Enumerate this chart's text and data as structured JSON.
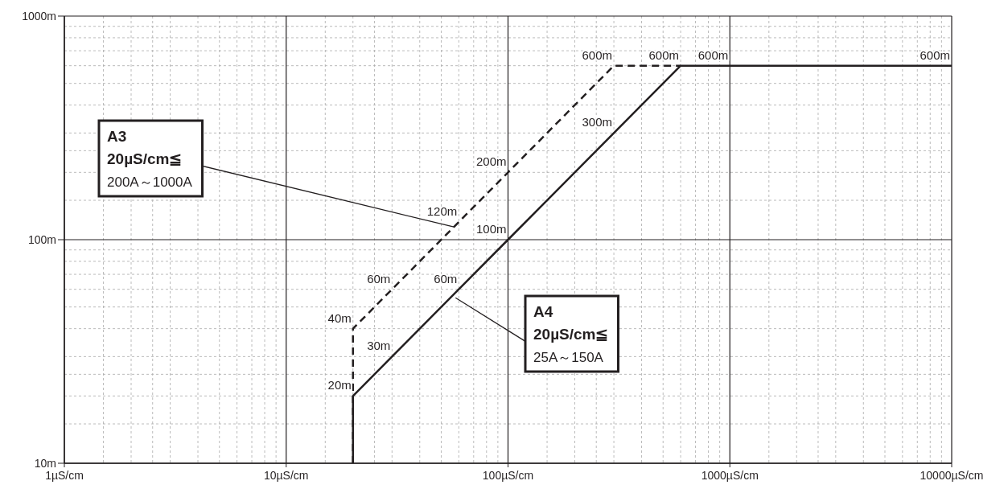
{
  "chart_data": {
    "type": "line",
    "log": "xy",
    "grid": true,
    "xlim": [
      1,
      10000
    ],
    "ylim": [
      10,
      1000
    ],
    "xticks": [
      {
        "value": 1,
        "label": "1µS/cm"
      },
      {
        "value": 10,
        "label": "10µS/cm"
      },
      {
        "value": 100,
        "label": "100µS/cm"
      },
      {
        "value": 1000,
        "label": "1000µS/cm"
      },
      {
        "value": 10000,
        "label": "10000µS/cm"
      }
    ],
    "yticks": [
      {
        "value": 10,
        "label": "10m"
      },
      {
        "value": 100,
        "label": "100m"
      },
      {
        "value": 1000,
        "label": "1000m"
      }
    ],
    "series": [
      {
        "color": "#231f20",
        "line_style": "dashed",
        "x": [
          20,
          20,
          30,
          60,
          100,
          300,
          600
        ],
        "values": [
          10,
          40,
          60,
          120,
          200,
          600,
          600
        ],
        "value_labels": [
          null,
          "40m",
          "60m",
          "120m",
          "200m",
          "600m",
          null
        ]
      },
      {
        "color": "#231f20",
        "line_style": "solid",
        "x": [
          20,
          20,
          30,
          60,
          100,
          300,
          600,
          1000,
          10000
        ],
        "values": [
          10,
          20,
          30,
          60,
          100,
          300,
          600,
          600,
          600
        ],
        "value_labels": [
          null,
          "20m",
          "30m",
          "60m",
          "100m",
          "300m",
          "600m",
          "600m",
          "600m"
        ]
      }
    ],
    "annotations": [
      {
        "text": "**A3**\n**20µS/cm≦**\n200A～1000A",
        "x": 57,
        "y": 114
      },
      {
        "text": "**A4**\n**20µS/cm≦**\n25A～150A",
        "x": 58,
        "y": 55
      }
    ]
  }
}
